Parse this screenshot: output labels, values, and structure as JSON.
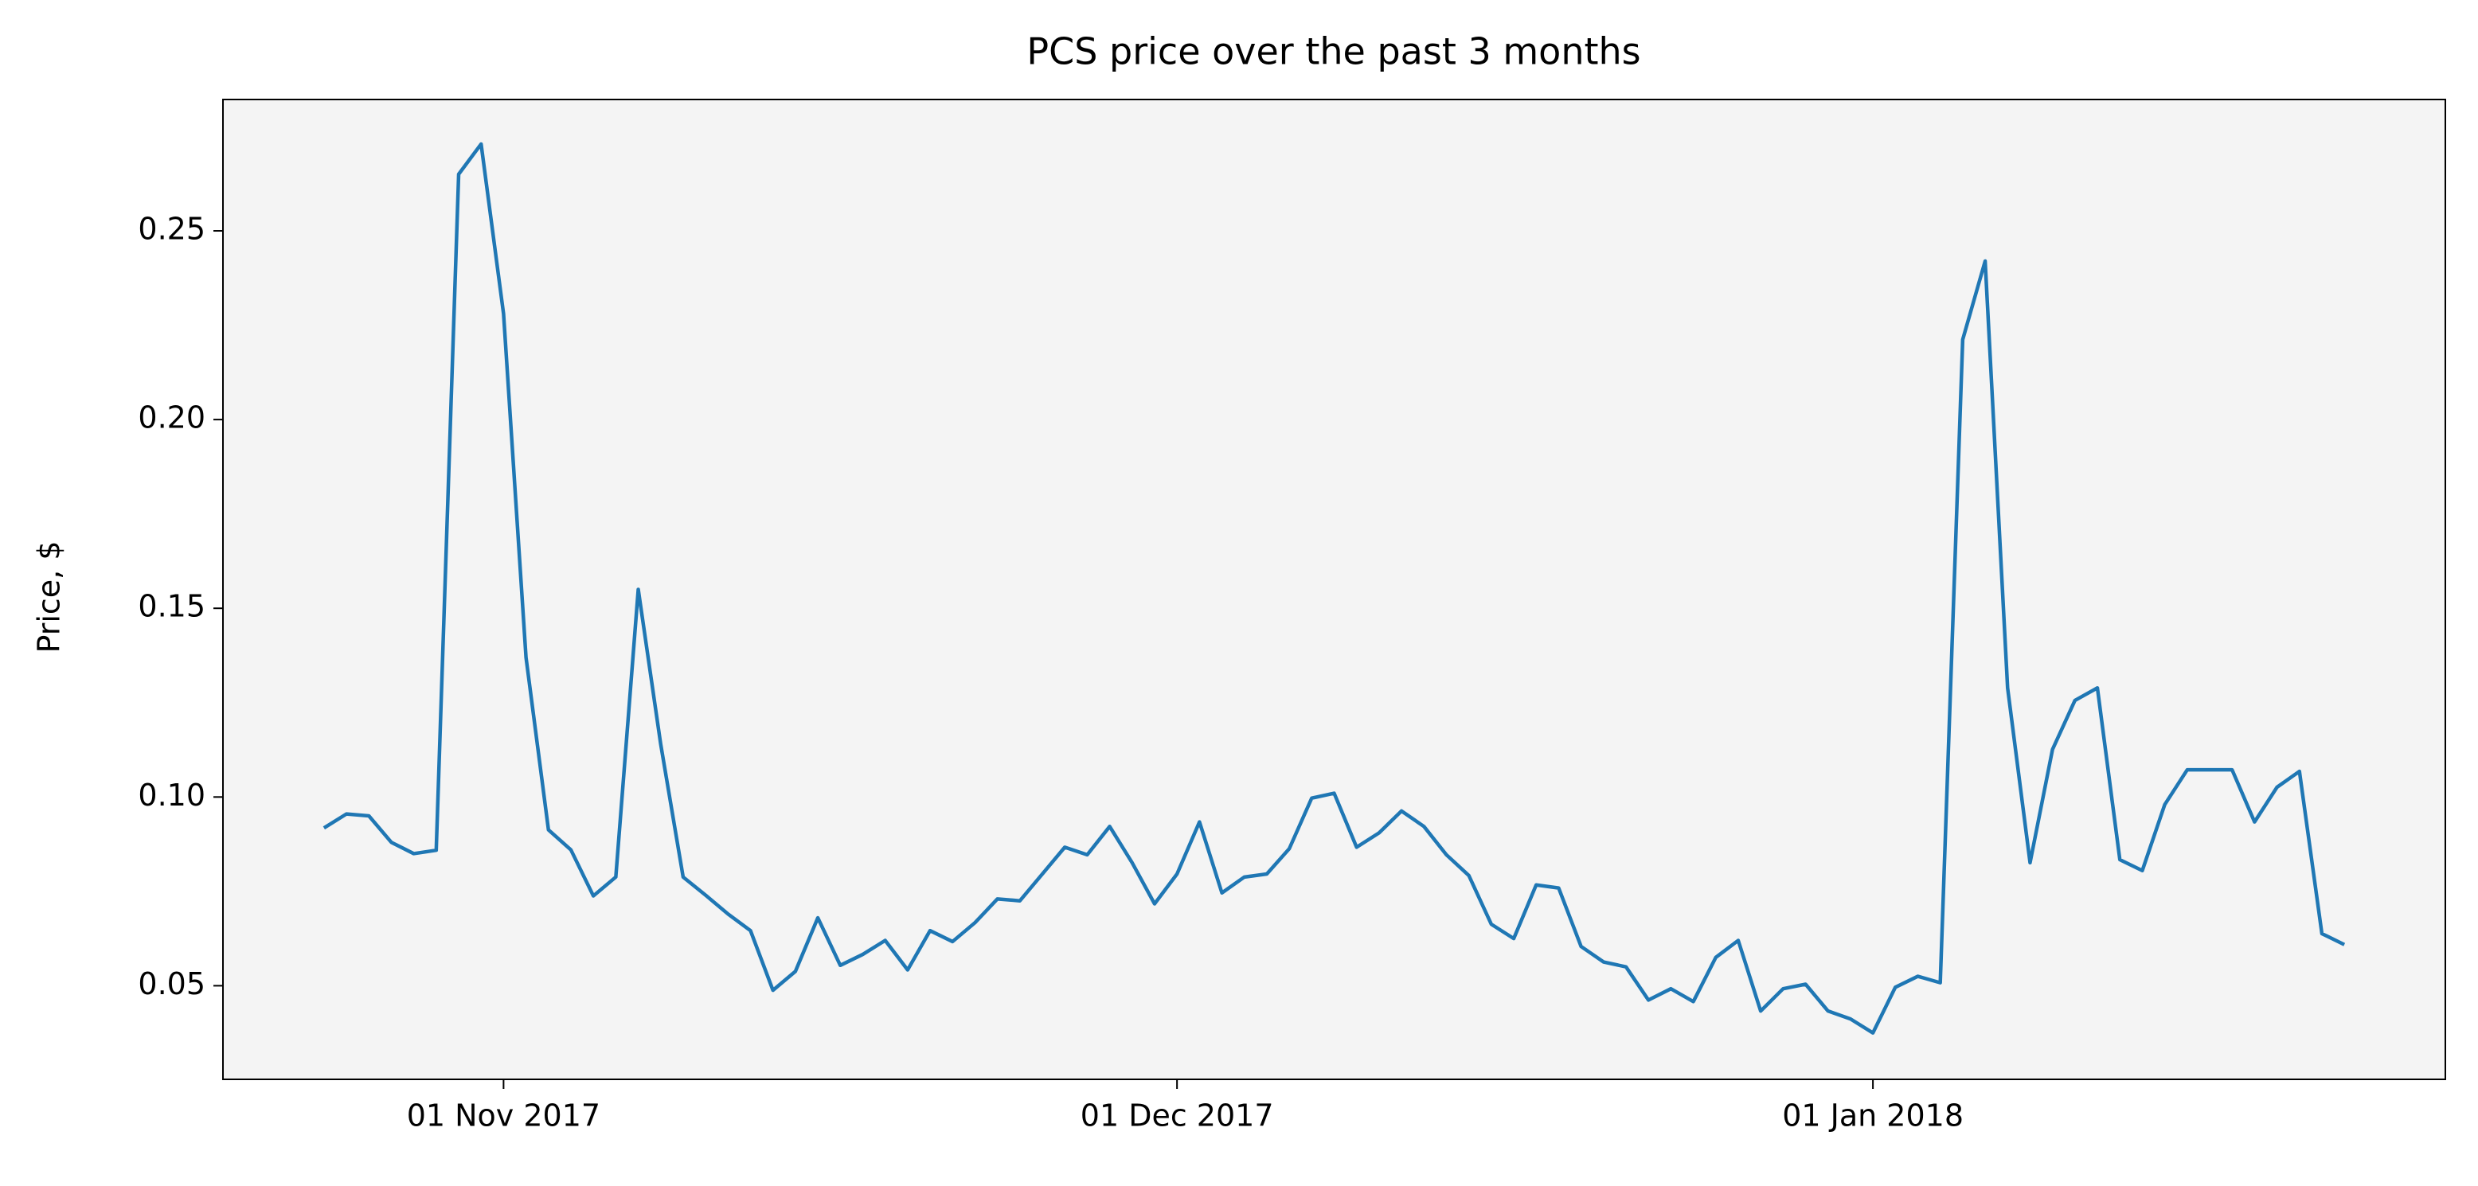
{
  "chart_data": {
    "type": "line",
    "title": "PCS price over the past 3 months",
    "y_label": "Price, $",
    "x": [
      "2017-10-24",
      "2017-10-25",
      "2017-10-26",
      "2017-10-27",
      "2017-10-28",
      "2017-10-29",
      "2017-10-30",
      "2017-10-31",
      "2017-11-01",
      "2017-11-02",
      "2017-11-03",
      "2017-11-04",
      "2017-11-05",
      "2017-11-06",
      "2017-11-07",
      "2017-11-08",
      "2017-11-09",
      "2017-11-10",
      "2017-11-11",
      "2017-11-12",
      "2017-11-13",
      "2017-11-14",
      "2017-11-15",
      "2017-11-16",
      "2017-11-17",
      "2017-11-18",
      "2017-11-19",
      "2017-11-20",
      "2017-11-21",
      "2017-11-22",
      "2017-11-23",
      "2017-11-24",
      "2017-11-25",
      "2017-11-26",
      "2017-11-27",
      "2017-11-28",
      "2017-11-29",
      "2017-11-30",
      "2017-12-01",
      "2017-12-02",
      "2017-12-03",
      "2017-12-04",
      "2017-12-05",
      "2017-12-06",
      "2017-12-07",
      "2017-12-08",
      "2017-12-09",
      "2017-12-10",
      "2017-12-11",
      "2017-12-12",
      "2017-12-13",
      "2017-12-14",
      "2017-12-15",
      "2017-12-16",
      "2017-12-17",
      "2017-12-18",
      "2017-12-19",
      "2017-12-20",
      "2017-12-21",
      "2017-12-22",
      "2017-12-23",
      "2017-12-24",
      "2017-12-25",
      "2017-12-26",
      "2017-12-27",
      "2017-12-28",
      "2017-12-29",
      "2017-12-30",
      "2017-12-31",
      "2018-01-01",
      "2018-01-02",
      "2018-01-03",
      "2018-01-04",
      "2018-01-05",
      "2018-01-06",
      "2018-01-07",
      "2018-01-08",
      "2018-01-09",
      "2018-01-10",
      "2018-01-11",
      "2018-01-12",
      "2018-01-13",
      "2018-01-14",
      "2018-01-15",
      "2018-01-16",
      "2018-01-17",
      "2018-01-18",
      "2018-01-19",
      "2018-01-20",
      "2018-01-21",
      "2018-01-22"
    ],
    "series": [
      {
        "color": "#1f77b4",
        "values": [
          0.0918,
          0.0955,
          0.095,
          0.088,
          0.085,
          0.0859,
          0.265,
          0.273,
          0.228,
          0.137,
          0.0913,
          0.086,
          0.0738,
          0.0788,
          0.155,
          0.114,
          0.0788,
          0.074,
          0.069,
          0.0646,
          0.0488,
          0.0538,
          0.068,
          0.0554,
          0.0583,
          0.062,
          0.0542,
          0.0646,
          0.0617,
          0.0667,
          0.073,
          0.0725,
          0.0796,
          0.0867,
          0.0847,
          0.0922,
          0.0826,
          0.0717,
          0.0796,
          0.0934,
          0.0746,
          0.0788,
          0.0796,
          0.0863,
          0.0997,
          0.101,
          0.0867,
          0.0905,
          0.0963,
          0.0922,
          0.0847,
          0.0792,
          0.0663,
          0.0625,
          0.0767,
          0.0759,
          0.0604,
          0.0563,
          0.055,
          0.0462,
          0.0492,
          0.0458,
          0.0575,
          0.062,
          0.0433,
          0.0492,
          0.0504,
          0.0433,
          0.0412,
          0.0375,
          0.0496,
          0.0525,
          0.0508,
          0.2212,
          0.242,
          0.1289,
          0.0826,
          0.1126,
          0.1256,
          0.1289,
          0.0834,
          0.0805,
          0.098,
          0.1072,
          0.1072,
          0.1072,
          0.0934,
          0.1026,
          0.1068,
          0.0638,
          0.0609
        ]
      }
    ],
    "xlim": [
      "2017-10-19T12:00:00Z",
      "2018-01-26T12:00:00Z"
    ],
    "xticks": [
      {
        "value": "2017-11-01",
        "label": "01 Nov 2017"
      },
      {
        "value": "2017-12-01",
        "label": "01 Dec 2017"
      },
      {
        "value": "2018-01-01",
        "label": "01 Jan 2018"
      }
    ],
    "ylim": [
      0.0252,
      0.2848
    ],
    "yticks": [
      {
        "value": 0.05,
        "label": "0.05"
      },
      {
        "value": 0.1,
        "label": "0.10"
      },
      {
        "value": 0.15,
        "label": "0.15"
      },
      {
        "value": 0.2,
        "label": "0.20"
      },
      {
        "value": 0.25,
        "label": "0.25"
      }
    ],
    "background": "#f4f4f4",
    "grid": false
  }
}
